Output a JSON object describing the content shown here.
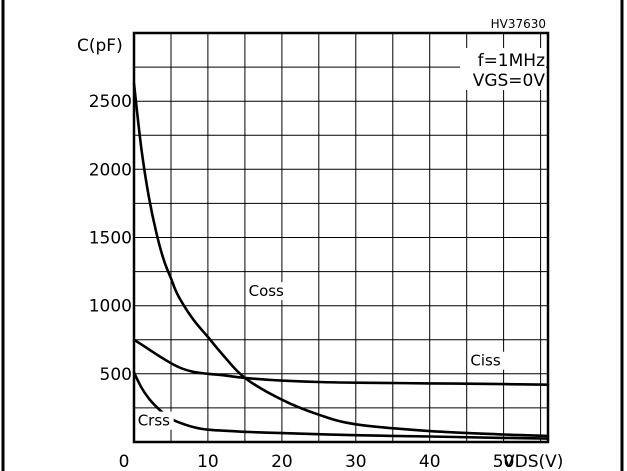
{
  "chart_data": {
    "type": "line",
    "doc_code": "HV37630",
    "ylabel": "C(pF)",
    "xlabel": "VDS(V)",
    "conditions": [
      "f=1MHz",
      "VGS=0V"
    ],
    "xlim": [
      0,
      56
    ],
    "ylim": [
      0,
      3000
    ],
    "xtick_values": [
      0,
      10,
      20,
      30,
      40,
      50
    ],
    "xtick_labels": [
      "0",
      "10",
      "20",
      "30",
      "40",
      "50"
    ],
    "ytick_values": [
      500,
      1000,
      1500,
      2000,
      2500
    ],
    "ytick_labels": [
      "500",
      "1000",
      "1500",
      "2000",
      "2500"
    ],
    "x_grid_step": 5,
    "y_grid_step": 250,
    "grid": true,
    "series": [
      {
        "name": "Coss",
        "x": [
          0,
          1,
          2,
          3,
          4,
          5,
          6,
          8,
          10,
          12,
          15,
          20,
          25,
          30,
          40,
          50,
          56
        ],
        "y": [
          2630,
          2150,
          1800,
          1540,
          1340,
          1200,
          1070,
          900,
          770,
          640,
          470,
          310,
          200,
          130,
          80,
          55,
          45
        ]
      },
      {
        "name": "Ciss",
        "x": [
          0,
          2,
          4,
          6,
          8,
          10,
          12,
          15,
          20,
          25,
          30,
          40,
          50,
          56
        ],
        "y": [
          750,
          680,
          610,
          550,
          515,
          500,
          490,
          470,
          450,
          440,
          435,
          430,
          425,
          420
        ]
      },
      {
        "name": "Crss",
        "x": [
          0,
          1,
          2,
          3,
          4,
          5,
          6,
          8,
          10,
          15,
          20,
          30,
          40,
          50,
          56
        ],
        "y": [
          510,
          400,
          320,
          260,
          210,
          170,
          145,
          110,
          90,
          75,
          65,
          50,
          40,
          30,
          25
        ]
      }
    ]
  }
}
